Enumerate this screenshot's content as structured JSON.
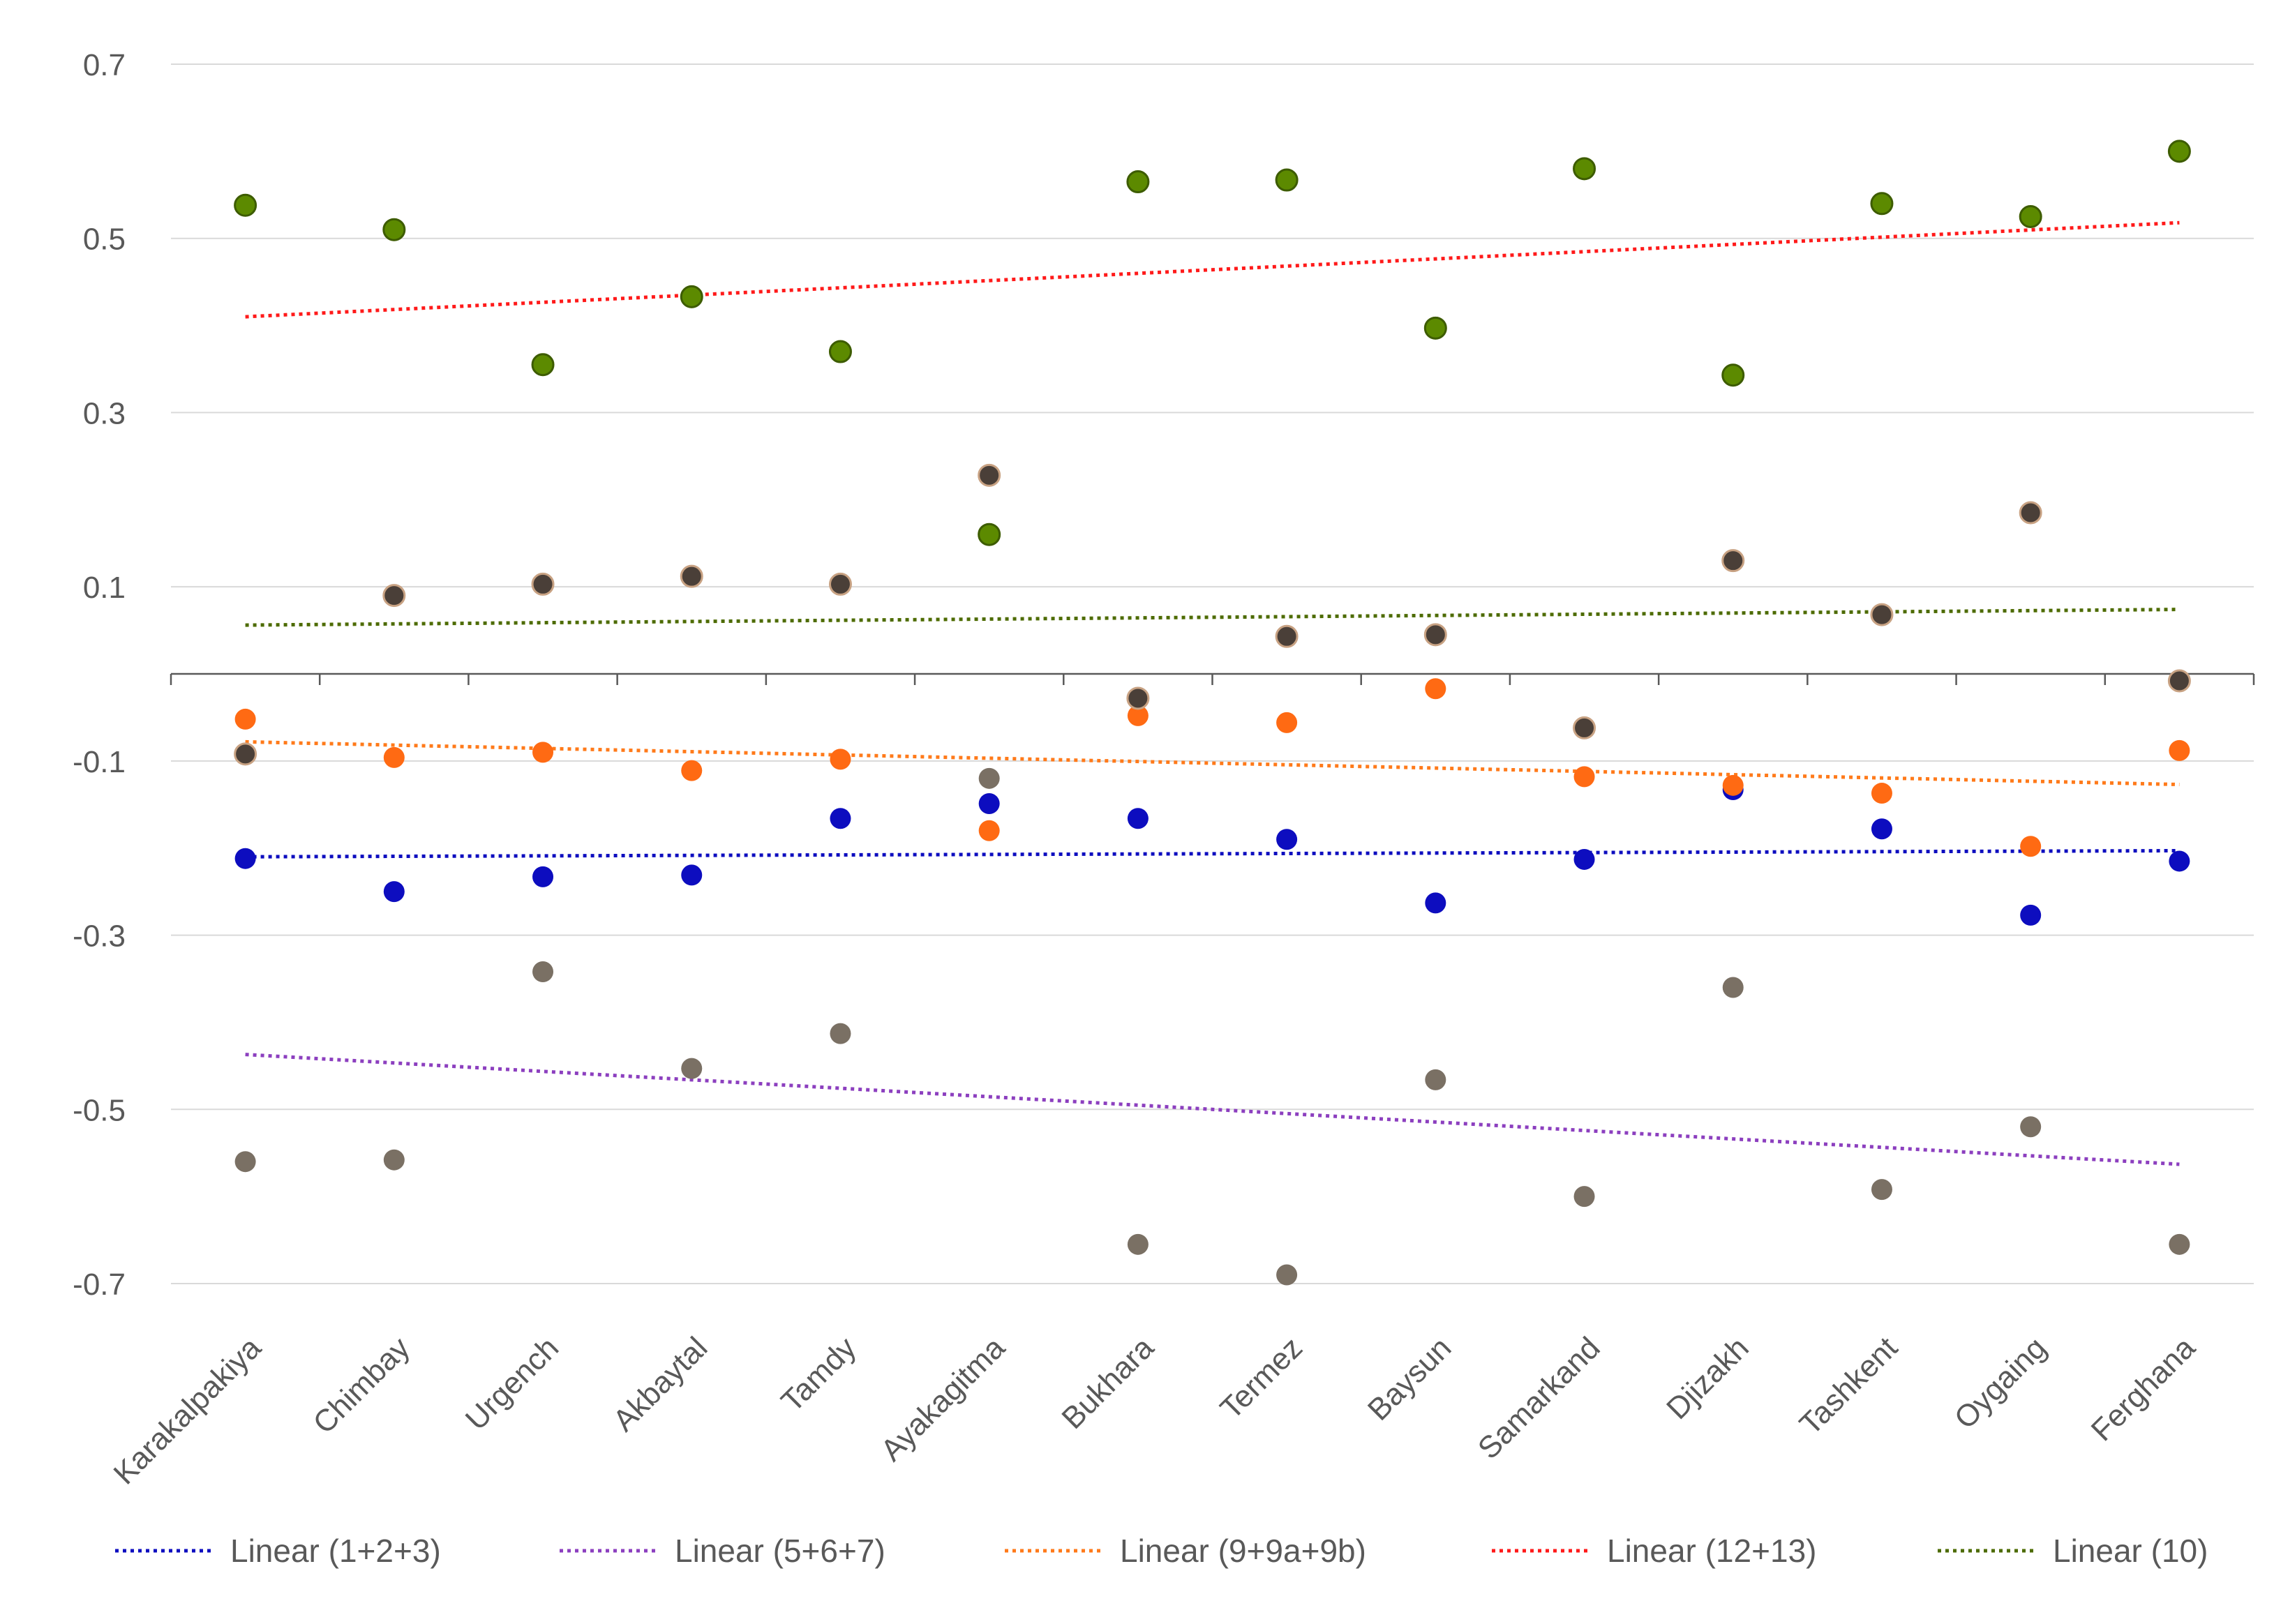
{
  "chart_data": {
    "type": "scatter",
    "title": "",
    "xlabel": "",
    "ylabel": "",
    "ylim": [
      -0.7,
      0.7
    ],
    "yticks": [
      0.7,
      0.5,
      0.3,
      0.1,
      -0.1,
      -0.3,
      -0.5,
      -0.7
    ],
    "grid": true,
    "legend_position": "bottom",
    "categories": [
      "Karakalpakiya",
      "Chimbay",
      "Urgench",
      "Akbaytal",
      "Tamdy",
      "Ayakagitma",
      "Bukhara",
      "Termez",
      "Baysun",
      "Samarkand",
      "Djizakh",
      "Tashkent",
      "Oygaing",
      "Ferghana"
    ],
    "series": [
      {
        "name": "1+2+3",
        "color": "#0d0dbf",
        "values": [
          -0.212,
          -0.25,
          -0.233,
          -0.231,
          -0.166,
          -0.149,
          -0.166,
          -0.19,
          -0.263,
          -0.213,
          -0.133,
          -0.178,
          -0.277,
          -0.215
        ]
      },
      {
        "name": "5+6+7",
        "color": "#7a7064",
        "values": [
          -0.56,
          -0.558,
          -0.342,
          -0.453,
          -0.413,
          -0.12,
          -0.655,
          -0.69,
          -0.466,
          -0.6,
          -0.36,
          -0.592,
          -0.52,
          -0.655
        ]
      },
      {
        "name": "9+9a+9b",
        "color": "#ff6a13",
        "values": [
          -0.052,
          -0.096,
          -0.09,
          -0.111,
          -0.098,
          -0.18,
          -0.048,
          -0.056,
          -0.017,
          -0.118,
          -0.128,
          -0.137,
          -0.198,
          -0.088
        ]
      },
      {
        "name": "12+13",
        "color": "#5c8a00",
        "values": [
          0.538,
          0.51,
          0.355,
          0.433,
          0.37,
          0.16,
          0.565,
          0.567,
          0.397,
          0.58,
          0.343,
          0.54,
          0.525,
          0.6
        ]
      },
      {
        "name": "10",
        "color": "#4a3f38",
        "values": [
          -0.092,
          0.09,
          0.103,
          0.112,
          0.103,
          0.228,
          -0.028,
          0.043,
          0.045,
          -0.062,
          0.13,
          0.068,
          0.185,
          -0.008
        ]
      }
    ],
    "trendlines": [
      {
        "label": "Linear (1+2+3)",
        "color": "#0d0dbf",
        "start": -0.21,
        "end": -0.203
      },
      {
        "label": "Linear (5+6+7)",
        "color": "#8c3fbf",
        "start": -0.437,
        "end": -0.563
      },
      {
        "label": "Linear (9+9a+9b)",
        "color": "#ff7a1a",
        "start": -0.078,
        "end": -0.127
      },
      {
        "label": "Linear (12+13)",
        "color": "#ff1a1a",
        "start": 0.41,
        "end": 0.518
      },
      {
        "label": "Linear (10)",
        "color": "#4d6b00",
        "start": 0.056,
        "end": 0.074
      }
    ]
  }
}
